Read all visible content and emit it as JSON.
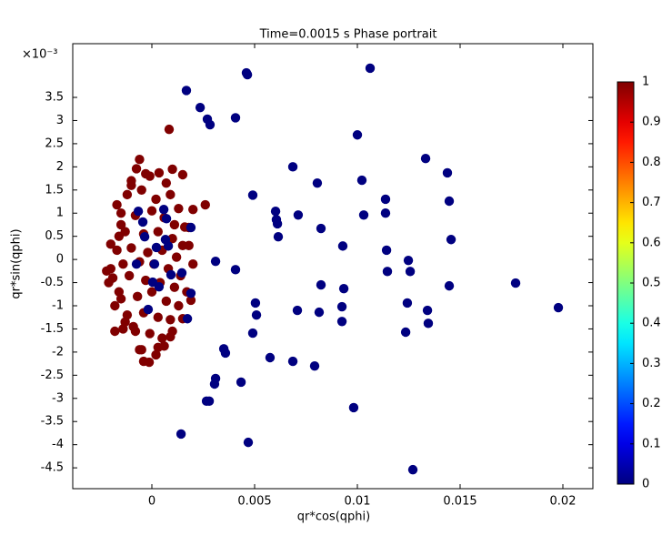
{
  "chart_data": {
    "type": "scatter",
    "title": "Time=0.0015 s  Phase portrait",
    "x_label": "qr*cos(qphi)",
    "y_label": "qr*sin(qphi)",
    "y_multiplier": "×10⁻³",
    "xlim": [
      -0.00385,
      0.02146
    ],
    "ylim": [
      -4.95,
      4.66
    ],
    "xticks": [
      0,
      0.005,
      0.01,
      0.015,
      0.02
    ],
    "yticks": [
      -4.5,
      -4,
      -3.5,
      -3,
      -2.5,
      -2,
      -1.5,
      -1,
      -0.5,
      0,
      0.5,
      1,
      1.5,
      2,
      2.5,
      3,
      3.5
    ],
    "colormap": "jet",
    "clim": [
      0,
      1
    ],
    "cticks": [
      0,
      0.1,
      0.2,
      0.3,
      0.4,
      0.5,
      0.6,
      0.7,
      0.8,
      0.9,
      1
    ],
    "series": [
      {
        "color_value": 1,
        "x": [
          0.00084,
          -0.0006,
          -0.00075,
          -0.0001,
          0.00035,
          0.001,
          0.0015,
          -0.001,
          -0.0017,
          -0.0015,
          -0.002,
          -0.0022,
          -0.0021,
          -0.0016,
          -0.0018,
          -0.0014,
          -0.0008,
          -0.0005,
          -0.0004,
          -0.00013,
          0.0002,
          0.0006,
          0.0009,
          0.0015,
          0.0019,
          0.0026,
          0.002,
          0.0018,
          0.0018,
          0.002,
          -0.0012,
          -0.0005,
          0.0002,
          0.0009,
          0.0013,
          -0.0015,
          -0.0008,
          0,
          0.0006,
          0.0011,
          -0.0013,
          -0.0004,
          0.0003,
          0.001,
          0.0015,
          -0.0017,
          -0.001,
          -0.0002,
          0.0005,
          0.0012,
          -0.0014,
          -0.0006,
          0.0001,
          0.0008,
          0.0014,
          -0.0019,
          -0.0011,
          -0.0003,
          0.0004,
          0.0011,
          -0.0015,
          -0.0007,
          0,
          0.0007,
          0.0013,
          -0.0012,
          -0.0004,
          0.0003,
          0.0009,
          -0.0009,
          -0.0001,
          0.0005,
          -0.002,
          -0.0016,
          0.0017,
          0.0016,
          -0.0003,
          0.0003,
          -0.001,
          0.0007,
          -0.0006,
          0.001,
          -0.0018,
          -0.0013
        ],
        "values": [
          2.81,
          2.16,
          1.96,
          1.8,
          1.87,
          1.95,
          1.83,
          1.7,
          1.18,
          0.75,
          0.33,
          -0.25,
          -0.5,
          -0.7,
          -1.55,
          -1.5,
          -1.55,
          -1.95,
          -2.2,
          -2.22,
          -2.06,
          -1.87,
          -1.67,
          -1.28,
          -0.88,
          1.18,
          1.08,
          0.69,
          0.3,
          -0.1,
          1.4,
          1.5,
          1.3,
          1.4,
          1.1,
          1.0,
          0.95,
          1.05,
          0.9,
          0.75,
          0.6,
          0.55,
          0.6,
          0.45,
          0.3,
          0.2,
          0.25,
          0.15,
          0.2,
          0.05,
          -0.1,
          -0.05,
          -0.1,
          -0.2,
          -0.35,
          -0.4,
          -0.35,
          -0.45,
          -0.5,
          -0.6,
          -0.85,
          -0.8,
          -0.7,
          -0.9,
          -1.0,
          -1.2,
          -1.15,
          -1.25,
          -1.3,
          -1.45,
          -1.6,
          -1.7,
          -0.2,
          0.5,
          -0.7,
          0.7,
          1.85,
          -1.9,
          1.6,
          1.65,
          -1.95,
          -1.55,
          -1.0,
          -1.35
        ]
      },
      {
        "color_value": 0,
        "x": [
          0.00168,
          0.00235,
          0.0027,
          0.00283,
          0.0046,
          0.00465,
          0.01062,
          0.00407,
          0.00491,
          0.00686,
          0.00805,
          0.01,
          0.01022,
          0.01332,
          0.01438,
          0.01447,
          0.00602,
          0.00606,
          0.00611,
          0.00615,
          0.00712,
          0.00823,
          0.01031,
          0.01137,
          0.01137,
          0.01142,
          0.01456,
          0.00929,
          0.01248,
          0.01257,
          0.01146,
          0.0177,
          0.01978,
          0.01447,
          0.00823,
          0.00934,
          0.00504,
          0.00491,
          0.00509,
          0.00708,
          0.00814,
          0.00925,
          0.00925,
          0.01341,
          0.01345,
          0.01243,
          0.01235,
          0.00575,
          0.00686,
          0.00792,
          0.0035,
          0.00358,
          0.0031,
          0.00305,
          0.00279,
          0.00266,
          0.00434,
          0.00982,
          0.00142,
          0.00469,
          0.0127,
          0.0031,
          0.00407,
          -0.00066,
          -0.00044,
          0.00071,
          -0.00035,
          0.00066,
          0.00022,
          0.00093,
          0.00146,
          4e-05,
          0.0019,
          0.00035,
          -0.00018,
          -0.00075,
          0.00058,
          0.00173,
          0.0008,
          0.00013,
          0.0019
        ],
        "values": [
          3.65,
          3.28,
          3.03,
          2.91,
          4.03,
          3.99,
          4.13,
          3.06,
          1.39,
          2.0,
          1.65,
          2.69,
          1.71,
          2.18,
          1.87,
          1.26,
          1.04,
          0.86,
          0.77,
          0.49,
          0.96,
          0.67,
          0.96,
          1.3,
          1.0,
          0.2,
          0.43,
          0.29,
          -0.02,
          -0.26,
          -0.26,
          -0.51,
          -1.04,
          -0.57,
          -0.55,
          -0.63,
          -0.94,
          -1.59,
          -1.2,
          -1.1,
          -1.14,
          -1.02,
          -1.34,
          -1.1,
          -1.38,
          -0.94,
          -1.57,
          -2.12,
          -2.2,
          -2.3,
          -1.93,
          -2.02,
          -2.57,
          -2.69,
          -3.06,
          -3.06,
          -2.65,
          -3.2,
          -3.77,
          -3.95,
          -4.54,
          -0.04,
          -0.22,
          1.04,
          0.81,
          0.88,
          0.49,
          0.43,
          0.26,
          -0.33,
          -0.29,
          -0.49,
          -0.73,
          -0.59,
          -1.08,
          -0.1,
          1.08,
          -1.28,
          0.29,
          -0.1,
          0.69
        ]
      }
    ]
  }
}
